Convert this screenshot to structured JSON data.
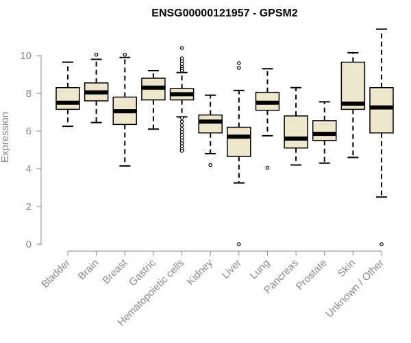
{
  "chart_data": {
    "type": "box",
    "title": "ENSG00000121957 - GPSM2",
    "xlabel": "",
    "ylabel": "Expression",
    "ylim": [
      0,
      11.6
    ],
    "yticks": [
      0,
      2,
      4,
      6,
      8,
      10
    ],
    "grid": false,
    "box_fill": "#ede6cd",
    "categories": [
      "Bladder",
      "Brain",
      "Breast",
      "Gastric",
      "Hematopoietic cells",
      "Kidney",
      "Liver",
      "Lung",
      "Pancreas",
      "Prostate",
      "Skin",
      "Unknown / Other"
    ],
    "boxes": [
      {
        "min": 6.25,
        "q1": 7.15,
        "median": 7.5,
        "q3": 8.3,
        "max": 9.65,
        "outliers": []
      },
      {
        "min": 6.45,
        "q1": 7.6,
        "median": 8.05,
        "q3": 8.55,
        "max": 9.8,
        "outliers": [
          10.05
        ]
      },
      {
        "min": 4.15,
        "q1": 6.35,
        "median": 7.05,
        "q3": 7.8,
        "max": 9.9,
        "outliers": [
          10.05
        ]
      },
      {
        "min": 6.1,
        "q1": 7.65,
        "median": 8.3,
        "q3": 8.8,
        "max": 9.2,
        "outliers": []
      },
      {
        "min": 6.75,
        "q1": 7.65,
        "median": 7.95,
        "q3": 8.25,
        "max": 9.1,
        "outliers": [
          10.4,
          9.85,
          9.7,
          9.55,
          9.4,
          9.3,
          9.2,
          6.7,
          6.5,
          6.3,
          6.1,
          5.95,
          5.8,
          5.65,
          5.5,
          5.35,
          5.2,
          5.05,
          4.95
        ]
      },
      {
        "min": 4.8,
        "q1": 5.9,
        "median": 6.5,
        "q3": 6.85,
        "max": 7.9,
        "outliers": [
          4.2
        ]
      },
      {
        "min": 3.25,
        "q1": 4.65,
        "median": 5.7,
        "q3": 6.2,
        "max": 8.15,
        "outliers": [
          9.6,
          9.35,
          0.0
        ]
      },
      {
        "min": 5.75,
        "q1": 7.1,
        "median": 7.5,
        "q3": 8.05,
        "max": 9.3,
        "outliers": [
          4.05
        ]
      },
      {
        "min": 4.2,
        "q1": 5.1,
        "median": 5.6,
        "q3": 6.8,
        "max": 8.3,
        "outliers": []
      },
      {
        "min": 4.3,
        "q1": 5.5,
        "median": 5.85,
        "q3": 6.55,
        "max": 7.55,
        "outliers": []
      },
      {
        "min": 4.6,
        "q1": 7.15,
        "median": 7.45,
        "q3": 9.65,
        "max": 10.15,
        "outliers": []
      },
      {
        "min": 2.5,
        "q1": 5.9,
        "median": 7.25,
        "q3": 8.3,
        "max": 11.4,
        "outliers": [
          0.0
        ]
      }
    ]
  }
}
